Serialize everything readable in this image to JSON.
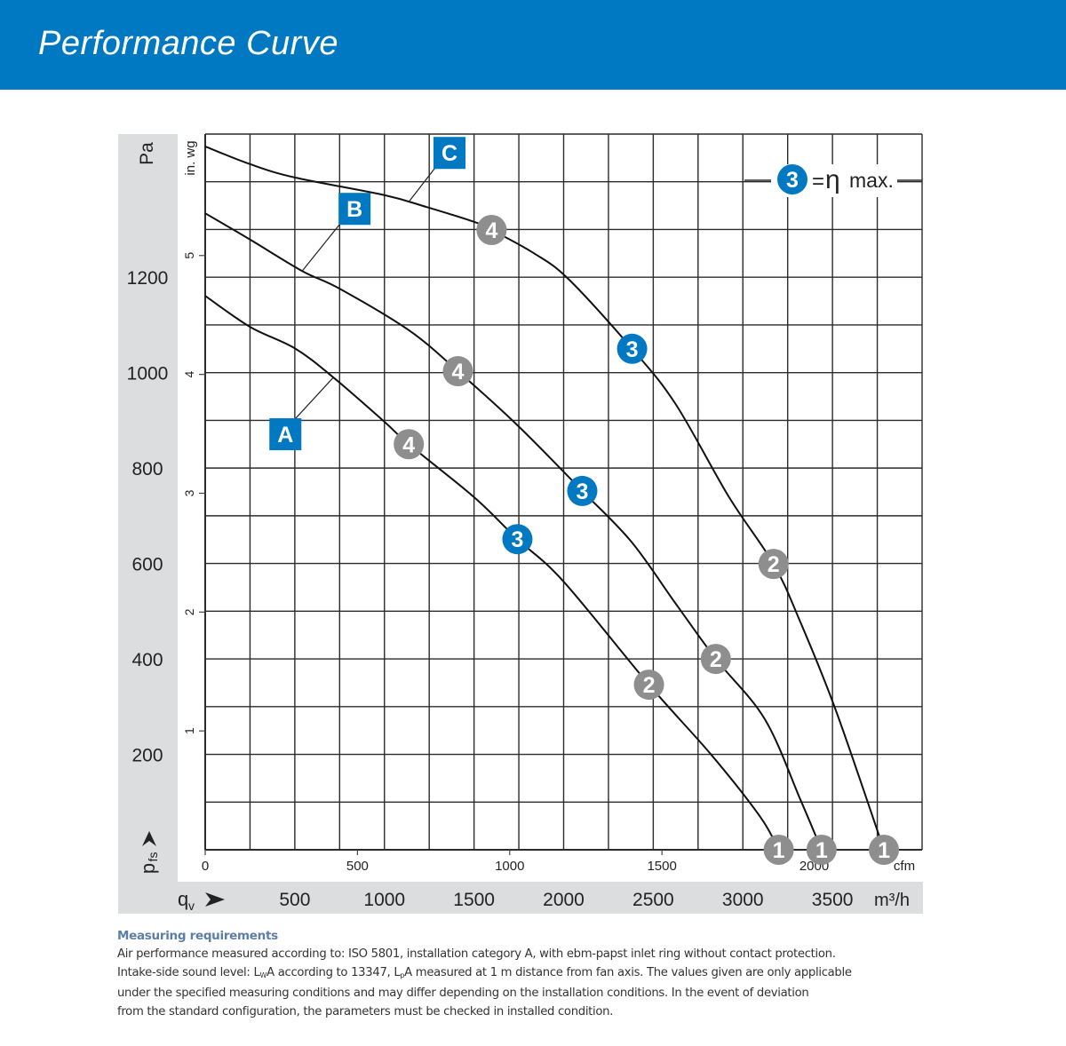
{
  "header": {
    "title": "Performance Curve"
  },
  "chart_data": {
    "type": "line",
    "title": "Performance Curve",
    "xlabel": "qv",
    "ylabel": "pfs",
    "x_unit": "m³/h",
    "y_unit": "Pa",
    "x_secondary_unit": "cfm",
    "y_secondary_unit": "in. wg",
    "xlim": [
      0,
      4000
    ],
    "ylim": [
      0,
      1500
    ],
    "grid": true,
    "x_grid_step": 250,
    "y_grid_step": 100,
    "x_ticks": [
      "500",
      "1000",
      "1500",
      "2000",
      "2500",
      "3000",
      "3500"
    ],
    "x_tick_values": [
      500,
      1000,
      1500,
      2000,
      2500,
      3000,
      3500
    ],
    "y_ticks": [
      "200",
      "400",
      "600",
      "800",
      "1000",
      "1200"
    ],
    "y_tick_values": [
      200,
      400,
      600,
      800,
      1000,
      1200
    ],
    "x_secondary_ticks": [
      "0",
      "500",
      "1000",
      "1500",
      "2000"
    ],
    "x_secondary_tick_values": [
      0,
      500,
      1000,
      1500,
      2000
    ],
    "y_secondary_ticks": [
      "1",
      "2",
      "3",
      "4",
      "5"
    ],
    "y_secondary_tick_values": [
      1,
      2,
      3,
      4,
      5
    ],
    "legend": {
      "marker": "3",
      "text": "=",
      "symbol": "η",
      "suffix": "max.",
      "placement": "top-right"
    },
    "series": [
      {
        "name": "A",
        "x": [
          0,
          250,
          500,
          715,
          1000,
          1136,
          1500,
          1742,
          2000,
          2476,
          2824,
          3097,
          3200
        ],
        "y": [
          1161,
          1096,
          1051,
          990,
          897,
          850,
          739,
          651,
          562,
          346,
          199,
          69,
          0
        ],
        "label_point": {
          "x": 715,
          "y": 990
        },
        "operating_points": [
          {
            "label": "4",
            "x": 1136,
            "y": 850
          },
          {
            "label": "3",
            "x": 1742,
            "y": 651
          },
          {
            "label": "2",
            "x": 2476,
            "y": 346
          },
          {
            "label": "1",
            "x": 3200,
            "y": 0
          }
        ]
      },
      {
        "name": "B",
        "x": [
          0,
          250,
          541,
          750,
          1136,
          1410,
          1747,
          2104,
          2377,
          2625,
          2849,
          3122,
          3320,
          3439
        ],
        "y": [
          1334,
          1279,
          1213,
          1176,
          1089,
          1003,
          888,
          752,
          646,
          516,
          400,
          274,
          106,
          0
        ],
        "label_point": {
          "x": 541,
          "y": 1213
        },
        "operating_points": [
          {
            "label": "4",
            "x": 1410,
            "y": 1003
          },
          {
            "label": "3",
            "x": 2104,
            "y": 752
          },
          {
            "label": "2",
            "x": 2849,
            "y": 400
          },
          {
            "label": "1",
            "x": 3439,
            "y": 0
          }
        ]
      },
      {
        "name": "C",
        "x": [
          0,
          250,
          500,
          1000,
          1236,
          1500,
          1598,
          1831,
          2030,
          2382,
          2625,
          2923,
          3171,
          3320,
          3519,
          3787
        ],
        "y": [
          1474,
          1437,
          1409,
          1372,
          1347,
          1316,
          1299,
          1251,
          1195,
          1050,
          934,
          739,
          599,
          478,
          292,
          0
        ],
        "label_point": {
          "x": 1140,
          "y": 1360
        },
        "operating_points": [
          {
            "label": "4",
            "x": 1598,
            "y": 1299
          },
          {
            "label": "3",
            "x": 2382,
            "y": 1050
          },
          {
            "label": "2",
            "x": 3171,
            "y": 599
          },
          {
            "label": "1",
            "x": 3787,
            "y": 0
          }
        ]
      }
    ],
    "colors": {
      "brand_blue": "#0079c2",
      "marker_grey": "#8e8e8e",
      "axis_band": "#dcdddf",
      "curve": "#111111"
    }
  },
  "notes": {
    "title": "Measuring requirements",
    "line1": "Air performance measured according to: ISO 5801, installation category A, with ebm-papst inlet ring without contact protection.",
    "line2_a": "Intake-side sound level: L",
    "line2_sub1": "W",
    "line2_b": "A according to 13347, L",
    "line2_sub2": "p",
    "line2_c": "A measured at 1 m distance from fan axis. The values given are only applicable",
    "line3": "under the specified measuring conditions and may differ depending on the installation conditions. In the event of deviation",
    "line4": "from the standard configuration, the parameters must be checked in installed condition."
  }
}
